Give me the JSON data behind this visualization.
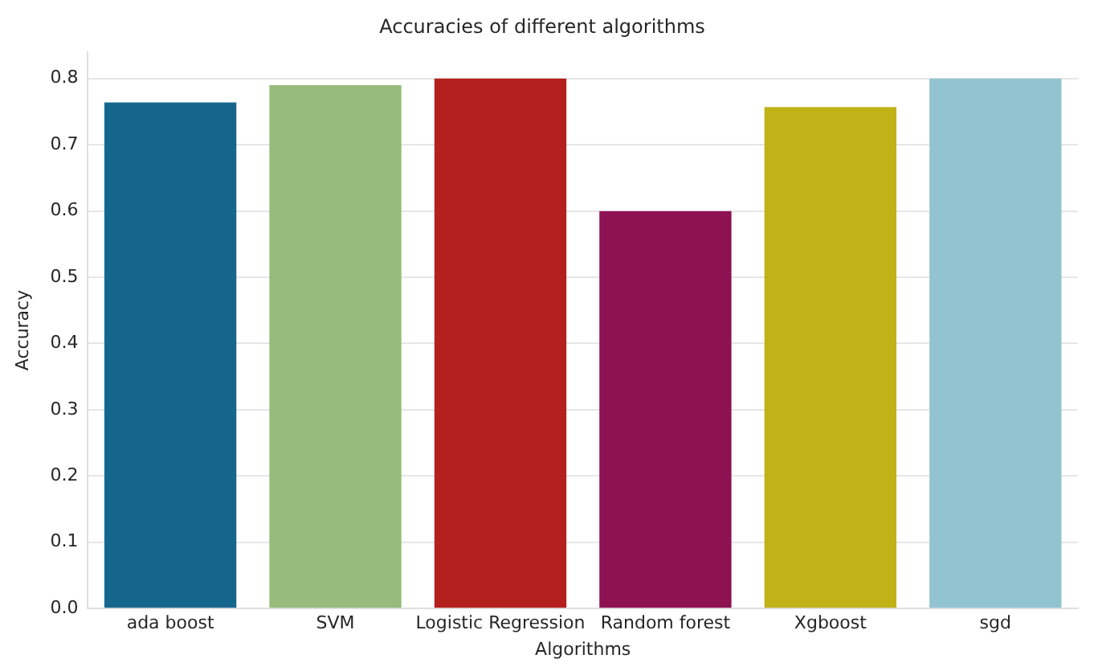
{
  "chart_data": {
    "type": "bar",
    "title": "Accuracies of different algorithms",
    "xlabel": "Algorithms",
    "ylabel": "Accuracy",
    "categories": [
      "ada boost",
      "SVM",
      "Logistic Regression",
      "Random forest",
      "Xgboost",
      "sgd"
    ],
    "values": [
      0.764,
      0.79,
      0.8,
      0.6,
      0.757,
      0.8
    ],
    "colors": [
      "#15668d",
      "#97bb7a",
      "#b3201d",
      "#8e1152",
      "#c0b217",
      "#91c4d0"
    ],
    "ylim": [
      0,
      0.84
    ],
    "yticks": [
      {
        "value": 0,
        "label": "0.0"
      },
      0.1,
      0.2,
      0.3,
      0.4,
      0.5,
      0.6,
      0.7,
      0.8
    ],
    "grid": "y"
  }
}
